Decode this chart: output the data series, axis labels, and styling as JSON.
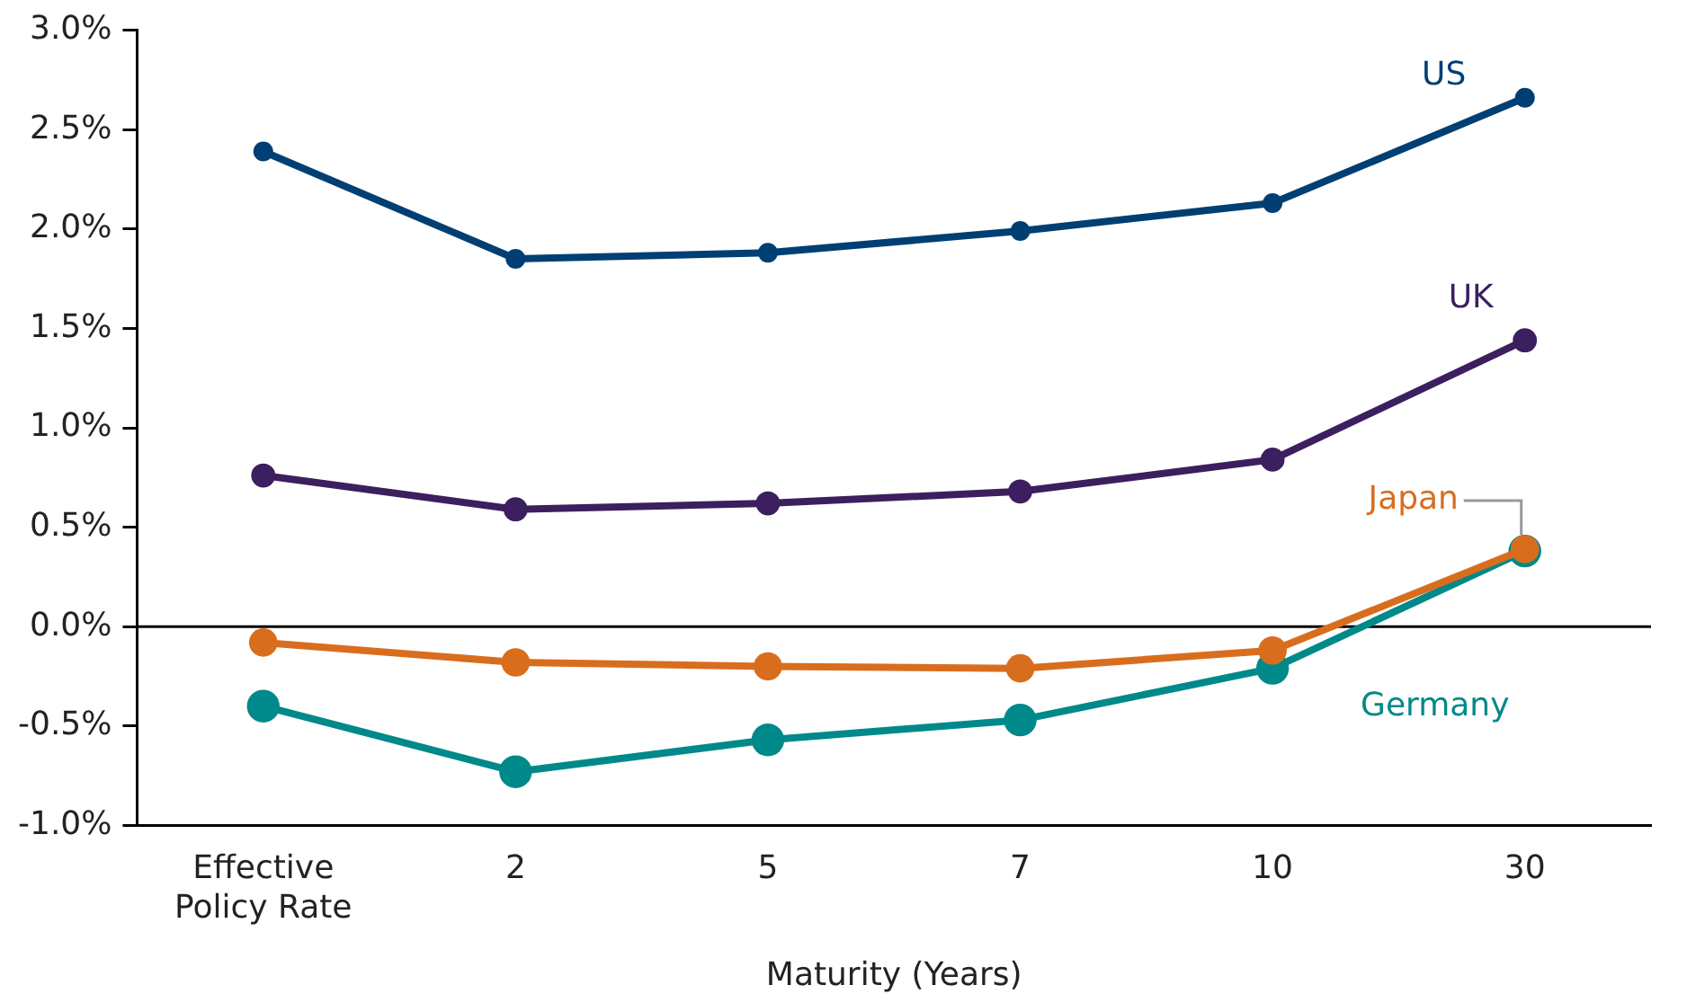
{
  "chart_data": {
    "type": "line",
    "xlabel": "Maturity (Years)",
    "categories": [
      "Effective Policy Rate",
      "2",
      "5",
      "7",
      "10",
      "30"
    ],
    "series": [
      {
        "name": "US",
        "color": "#003f73",
        "values": [
          2.39,
          1.85,
          1.88,
          1.99,
          2.13,
          2.66
        ]
      },
      {
        "name": "UK",
        "color": "#3b1f5e",
        "values": [
          0.76,
          0.59,
          0.62,
          0.68,
          0.84,
          1.44
        ]
      },
      {
        "name": "Japan",
        "color": "#d96d1e",
        "values": [
          -0.08,
          -0.18,
          -0.2,
          -0.21,
          -0.12,
          0.39
        ]
      },
      {
        "name": "Germany",
        "color": "#00898a",
        "values": [
          -0.4,
          -0.73,
          -0.57,
          -0.47,
          -0.21,
          0.38
        ]
      }
    ],
    "ylim": [
      -1.0,
      3.0
    ],
    "yticks": [
      {
        "value": -1.0,
        "label": "-1.0%"
      },
      {
        "value": -0.5,
        "label": "-0.5%"
      },
      {
        "value": 0,
        "label": "0.0%"
      },
      {
        "value": 0.5,
        "label": "0.5%"
      },
      {
        "value": 1.0,
        "label": "1.0%"
      },
      {
        "value": 1.5,
        "label": "1.5%"
      },
      {
        "value": 2.0,
        "label": "2.0%"
      },
      {
        "value": 2.5,
        "label": "2.5%"
      },
      {
        "value": 3.0,
        "label": "3.0%"
      }
    ],
    "ref_lines": [
      {
        "axis": "y",
        "value": 0,
        "color": "#000000"
      }
    ],
    "grid": false,
    "legend": false,
    "marker": "circle",
    "line_style": "solid"
  }
}
